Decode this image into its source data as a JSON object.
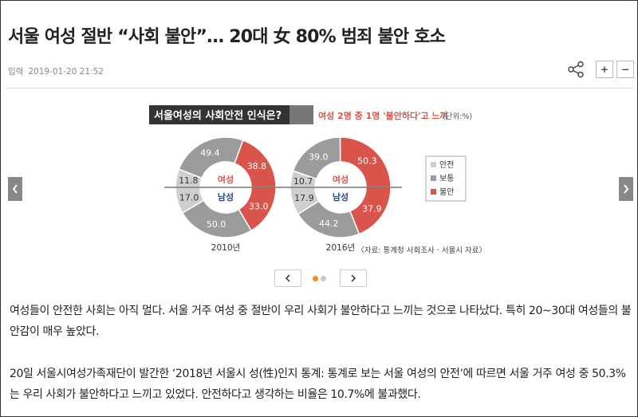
{
  "article": {
    "title": "서울 여성 절반 “사회 불안”… 20대 女 80% 범죄 불안 호소",
    "date_label": "입력",
    "date_value": "2019-01-20 21:52",
    "font_plus": "+",
    "font_minus": "−"
  },
  "infographic": {
    "heading": "서울여성의 사회안전 인식은?",
    "subheading": "여성 2명 중 1명 '불안하다'고 느껴",
    "unit": "(단위:%)",
    "female_label": "여성",
    "male_label": "남성",
    "legend": [
      "안전",
      "보통",
      "불안"
    ],
    "source": "〈자료: 통계청 사회조사 · 서울시 자료〉",
    "colors": {
      "safe": "#cfcfcf",
      "normal": "#9b9b9b",
      "unsafe": "#d9544a",
      "header": "#333333"
    }
  },
  "chart_data": [
    {
      "type": "pie",
      "title": "2010년",
      "female": [
        {
          "label": "불안",
          "value": 38.8
        },
        {
          "label": "보통",
          "value": 49.4
        },
        {
          "label": "안전",
          "value": 11.8
        }
      ],
      "male": [
        {
          "label": "불안",
          "value": 33.0
        },
        {
          "label": "보통",
          "value": 50.0
        },
        {
          "label": "안전",
          "value": 17.0
        }
      ]
    },
    {
      "type": "pie",
      "title": "2016년",
      "female": [
        {
          "label": "불안",
          "value": 50.3
        },
        {
          "label": "보통",
          "value": 39.0
        },
        {
          "label": "안전",
          "value": 10.7
        }
      ],
      "male": [
        {
          "label": "불안",
          "value": 37.9
        },
        {
          "label": "보통",
          "value": 44.2
        },
        {
          "label": "안전",
          "value": 17.9
        }
      ]
    }
  ],
  "body": {
    "paragraph1": "여성들이 안전한 사회는 아직 멀다. 서울 거주 여성 중 절반이 우리 사회가 불안하다고 느끼는 것으로 나타났다. 특히 20~30대 여성들의 불안감이 매우 높았다.",
    "paragraph2": "20일 서울시여성가족재단이 발간한 ‘2018년 서울시 성(性)인지 통계: 통계로 보는 서울 여성의 안전’에 따르면 서울 거주 여성 중 50.3%는 우리 사회가 불안하다고 느끼고 있었다. 안전하다고 생각하는 비율은 10.7%에 불과했다."
  }
}
